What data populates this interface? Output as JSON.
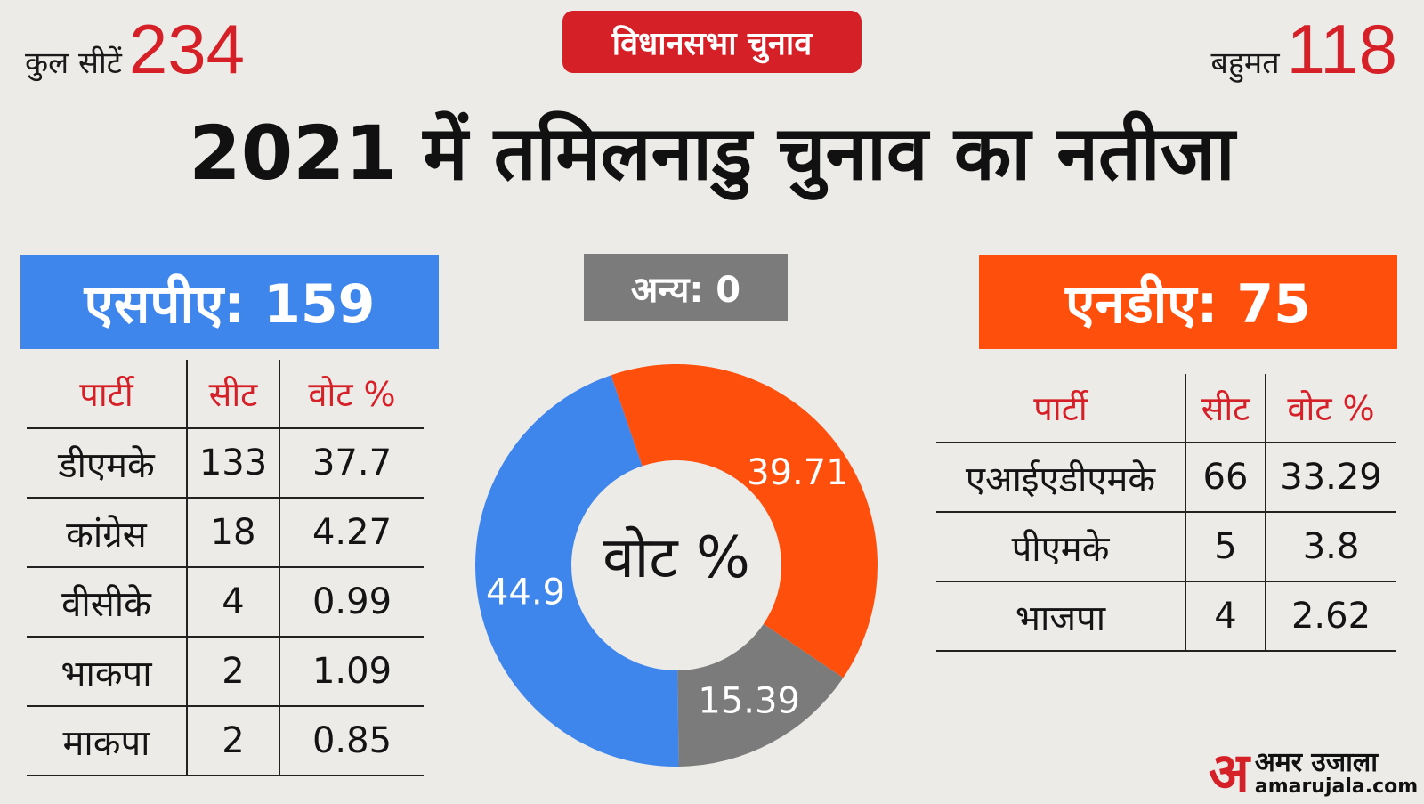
{
  "header": {
    "total_seats_label": "कुल सीटें",
    "total_seats": "234",
    "badge": "विधानसभा चुनाव",
    "majority_label": "बहुमत",
    "majority": "118",
    "title": "2021 में तमिलनाडु चुनाव का नतीजा"
  },
  "spa": {
    "label": "एसपीए: 159",
    "headers": [
      "पार्टी",
      "सीट",
      "वोट %"
    ],
    "rows": [
      [
        "डीएमके",
        "133",
        "37.7"
      ],
      [
        "कांग्रेस",
        "18",
        "4.27"
      ],
      [
        "वीसीके",
        "4",
        "0.99"
      ],
      [
        "भाकपा",
        "2",
        "1.09"
      ],
      [
        "माकपा",
        "2",
        "0.85"
      ]
    ]
  },
  "nda": {
    "label": "एनडीए: 75",
    "headers": [
      "पार्टी",
      "सीट",
      "वोट %"
    ],
    "rows": [
      [
        "एआईएडीएमके",
        "66",
        "33.29"
      ],
      [
        "पीएमके",
        "5",
        "3.8"
      ],
      [
        "भाजपा",
        "4",
        "2.62"
      ]
    ]
  },
  "others": {
    "label": "अन्य: 0"
  },
  "colors": {
    "spa": "#3f86ec",
    "nda": "#ff4f0d",
    "others": "#7b7b7b",
    "accent": "#d62028"
  },
  "chart_data": {
    "type": "pie",
    "title": "",
    "center_label": "वोट %",
    "slices": [
      {
        "label": "39.71",
        "value": 39.71,
        "color": "#ff4f0d"
      },
      {
        "label": "15.39",
        "value": 15.39,
        "color": "#7b7b7b"
      },
      {
        "label": "44.9",
        "value": 44.9,
        "color": "#3f86ec"
      }
    ]
  },
  "logo": {
    "mark": "अ",
    "name": "अमर उजाला",
    "url": "amarujala.com"
  }
}
